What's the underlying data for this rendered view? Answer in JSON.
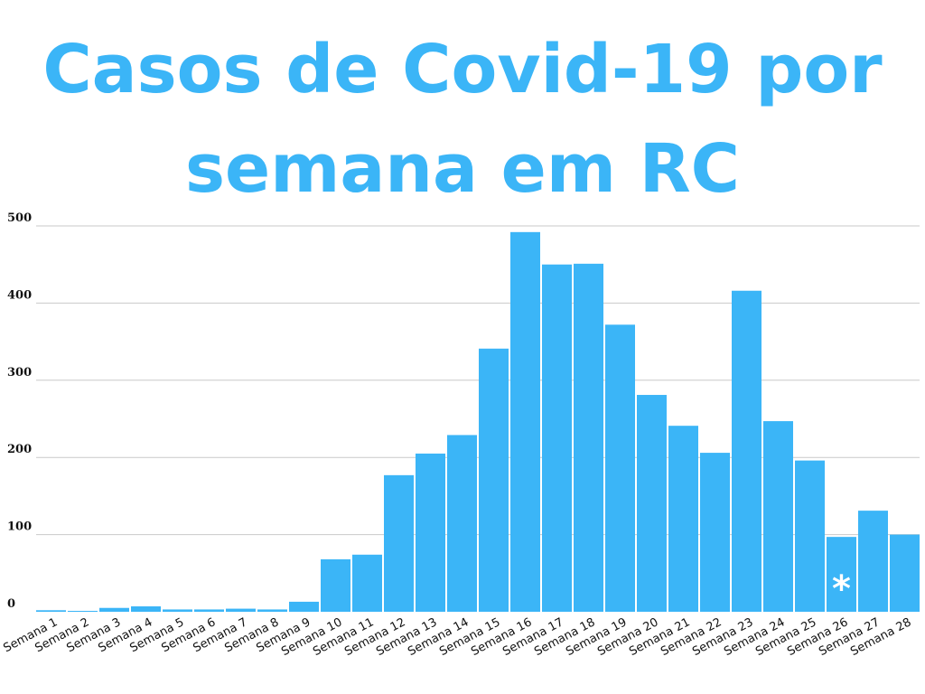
{
  "title": {
    "line1": "Casos de Covid-19 por",
    "line2": "semana em RC"
  },
  "chart_data": {
    "type": "bar",
    "title": "Casos de Covid-19 por semana em RC",
    "xlabel": "",
    "ylabel": "",
    "ylim": [
      0,
      500
    ],
    "yticks": [
      0,
      100,
      200,
      300,
      400,
      500
    ],
    "grid": true,
    "bar_color": "#3BB5F7",
    "categories": [
      "Semana 1",
      "Semana 2",
      "Semana 3",
      "Semana 4",
      "Semana 5",
      "Semana 6",
      "Semana 7",
      "Semana 8",
      "Semana 9",
      "Semana 10",
      "Semana 11",
      "Semana 12",
      "Semana 13",
      "Semana 14",
      "Semana 15",
      "Semana 16",
      "Semana 17",
      "Semana 18",
      "Semana 19",
      "Semana 20",
      "Semana 21",
      "Semana 22",
      "Semana 23",
      "Semana 24",
      "Semana 25",
      "Semana 26",
      "Semana 27",
      "Semana 28"
    ],
    "values": [
      2,
      1,
      5,
      7,
      3,
      3,
      4,
      3,
      13,
      68,
      74,
      177,
      205,
      229,
      341,
      492,
      450,
      451,
      372,
      281,
      241,
      206,
      416,
      247,
      196,
      97,
      131,
      100
    ],
    "annotations": [
      {
        "category": "Semana 26",
        "text": "*",
        "color": "#ffffff"
      }
    ]
  }
}
